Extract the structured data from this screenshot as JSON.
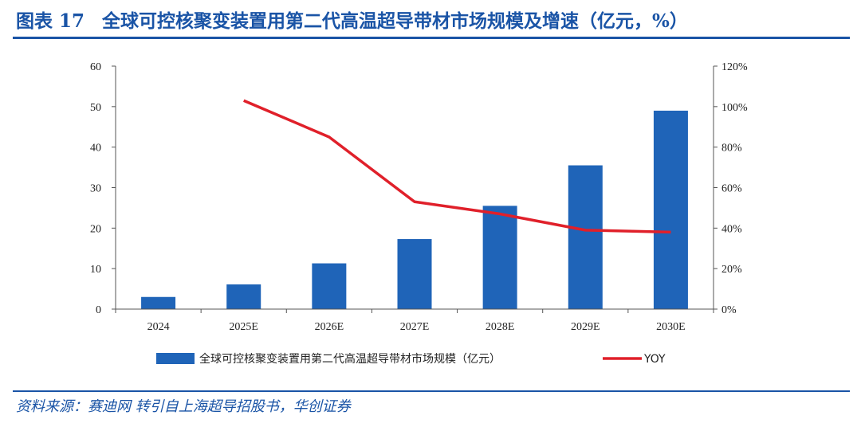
{
  "figure": {
    "label": "图表",
    "number": "17",
    "title": "全球可控核聚变装置用第二代高温超导带材市场规模及增速（亿元，%）",
    "source": "资料来源：赛迪网 转引自上海超导招股书，华创证券"
  },
  "chart_data": {
    "type": "bar+line",
    "categories": [
      "2024",
      "2025E",
      "2026E",
      "2027E",
      "2028E",
      "2029E",
      "2030E"
    ],
    "series": [
      {
        "name": "全球可控核聚变装置用第二代高温超导带材市场规模（亿元）",
        "type": "bar",
        "axis": "left",
        "color": "#1f64b8",
        "values": [
          3.0,
          6.1,
          11.3,
          17.3,
          25.5,
          35.5,
          49.0
        ]
      },
      {
        "name": "YOY",
        "type": "line",
        "axis": "right",
        "color": "#e0202a",
        "values": [
          null,
          103,
          85,
          53,
          47,
          39,
          38
        ]
      }
    ],
    "y_left": {
      "min": 0,
      "max": 60,
      "ticks": [
        "0",
        "10",
        "20",
        "30",
        "40",
        "50",
        "60"
      ]
    },
    "y_right": {
      "min": 0,
      "max": 120,
      "ticks": [
        "0%",
        "20%",
        "40%",
        "60%",
        "80%",
        "100%",
        "120%"
      ]
    },
    "grid": false,
    "legend": "bottom"
  }
}
